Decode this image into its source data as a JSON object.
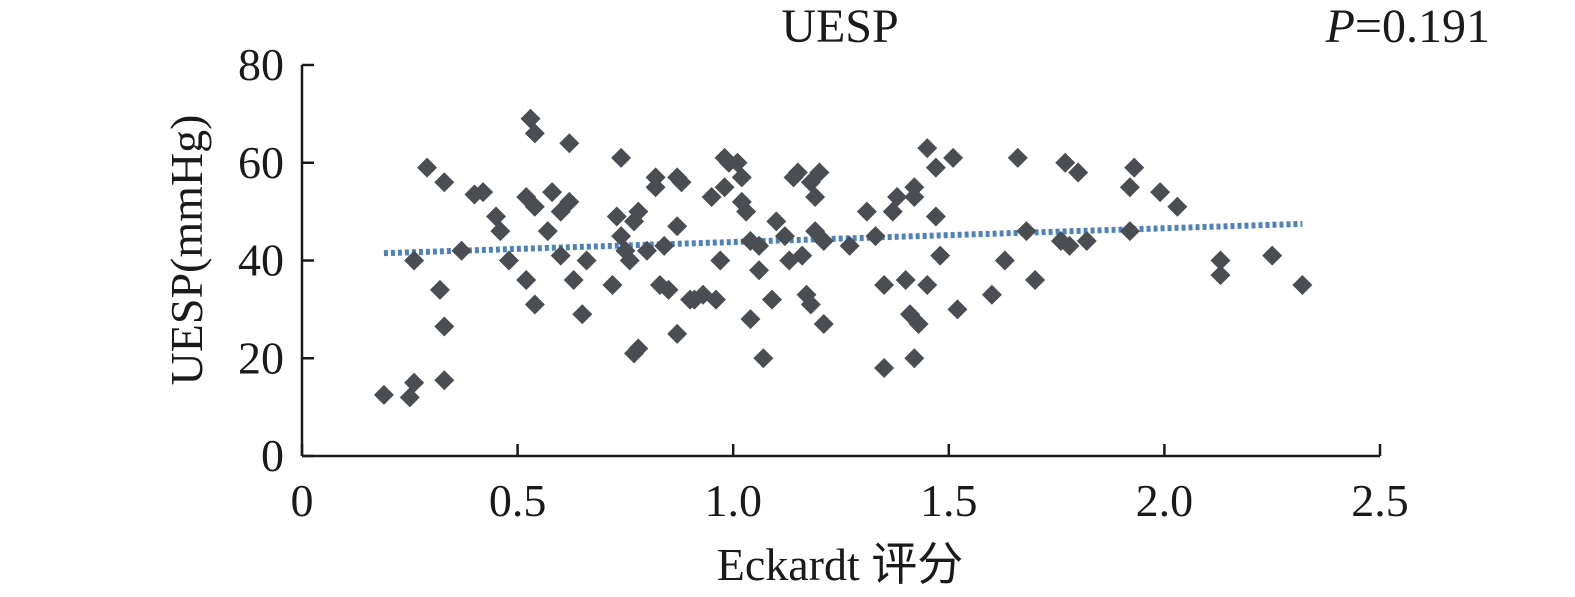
{
  "chart_data": {
    "type": "scatter",
    "title": "UESP",
    "p_value": {
      "symbol": "P",
      "text": "=0.191"
    },
    "xlabel": "Eckardt 评分",
    "ylabel": "UESP(mmHg)",
    "xlim": [
      0,
      2.5
    ],
    "ylim": [
      0,
      80
    ],
    "xticks": [
      0,
      0.5,
      1.0,
      1.5,
      2.0,
      2.5
    ],
    "xtick_labels": [
      "0",
      "0.5",
      "1.0",
      "1.5",
      "2.0",
      "2.5"
    ],
    "yticks": [
      0,
      20,
      40,
      60,
      80
    ],
    "ytick_labels": [
      "0",
      "20",
      "40",
      "60",
      "80"
    ],
    "grid": false,
    "colors": {
      "points": "#4a4d52",
      "trend": "#4f81bd",
      "axis": "#1a1a1a"
    },
    "points": [
      [
        0.19,
        12.5
      ],
      [
        0.25,
        12
      ],
      [
        0.26,
        15
      ],
      [
        0.26,
        40
      ],
      [
        0.29,
        59
      ],
      [
        0.32,
        34
      ],
      [
        0.33,
        56
      ],
      [
        0.33,
        26.5
      ],
      [
        0.33,
        15.5
      ],
      [
        0.37,
        42
      ],
      [
        0.4,
        53.5
      ],
      [
        0.42,
        54
      ],
      [
        0.45,
        49
      ],
      [
        0.46,
        46
      ],
      [
        0.48,
        40
      ],
      [
        0.52,
        53
      ],
      [
        0.52,
        36
      ],
      [
        0.53,
        69
      ],
      [
        0.54,
        66
      ],
      [
        0.54,
        51
      ],
      [
        0.54,
        31
      ],
      [
        0.57,
        46
      ],
      [
        0.58,
        54
      ],
      [
        0.6,
        41
      ],
      [
        0.6,
        50
      ],
      [
        0.62,
        52
      ],
      [
        0.62,
        64
      ],
      [
        0.63,
        36
      ],
      [
        0.65,
        29
      ],
      [
        0.66,
        40
      ],
      [
        0.72,
        35
      ],
      [
        0.73,
        49
      ],
      [
        0.74,
        61
      ],
      [
        0.74,
        45
      ],
      [
        0.75,
        42
      ],
      [
        0.76,
        40
      ],
      [
        0.77,
        48
      ],
      [
        0.78,
        50
      ],
      [
        0.77,
        21
      ],
      [
        0.78,
        22
      ],
      [
        0.8,
        42
      ],
      [
        0.82,
        55
      ],
      [
        0.82,
        57
      ],
      [
        0.83,
        35
      ],
      [
        0.84,
        43
      ],
      [
        0.85,
        34
      ],
      [
        0.87,
        57
      ],
      [
        0.88,
        56
      ],
      [
        0.87,
        47
      ],
      [
        0.87,
        25
      ],
      [
        0.9,
        32
      ],
      [
        0.91,
        32
      ],
      [
        0.93,
        33
      ],
      [
        0.95,
        53
      ],
      [
        0.96,
        32
      ],
      [
        0.97,
        40
      ],
      [
        0.98,
        61
      ],
      [
        0.98,
        55
      ],
      [
        0.99,
        60
      ],
      [
        1.01,
        60
      ],
      [
        1.02,
        57
      ],
      [
        1.02,
        52
      ],
      [
        1.03,
        50
      ],
      [
        1.04,
        44
      ],
      [
        1.04,
        28
      ],
      [
        1.06,
        38
      ],
      [
        1.06,
        43
      ],
      [
        1.07,
        20
      ],
      [
        1.09,
        32
      ],
      [
        1.1,
        48
      ],
      [
        1.12,
        45
      ],
      [
        1.13,
        40
      ],
      [
        1.14,
        57
      ],
      [
        1.15,
        58
      ],
      [
        1.16,
        41
      ],
      [
        1.17,
        33
      ],
      [
        1.18,
        31
      ],
      [
        1.18,
        56
      ],
      [
        1.19,
        53
      ],
      [
        1.19,
        46
      ],
      [
        1.2,
        58
      ],
      [
        1.21,
        27
      ],
      [
        1.21,
        44
      ],
      [
        1.27,
        43
      ],
      [
        1.31,
        50
      ],
      [
        1.33,
        45
      ],
      [
        1.35,
        35
      ],
      [
        1.35,
        18
      ],
      [
        1.37,
        50
      ],
      [
        1.38,
        53
      ],
      [
        1.4,
        36
      ],
      [
        1.42,
        53
      ],
      [
        1.42,
        55
      ],
      [
        1.41,
        29
      ],
      [
        1.43,
        27
      ],
      [
        1.42,
        20
      ],
      [
        1.45,
        35
      ],
      [
        1.45,
        63
      ],
      [
        1.47,
        59
      ],
      [
        1.47,
        49
      ],
      [
        1.48,
        41
      ],
      [
        1.51,
        61
      ],
      [
        1.52,
        30
      ],
      [
        1.6,
        33
      ],
      [
        1.63,
        40
      ],
      [
        1.66,
        61
      ],
      [
        1.68,
        46
      ],
      [
        1.7,
        36
      ],
      [
        1.76,
        44
      ],
      [
        1.77,
        60
      ],
      [
        1.78,
        43
      ],
      [
        1.8,
        58
      ],
      [
        1.82,
        44
      ],
      [
        1.92,
        55
      ],
      [
        1.92,
        46
      ],
      [
        1.93,
        59
      ],
      [
        1.99,
        54
      ],
      [
        2.03,
        51
      ],
      [
        2.13,
        37
      ],
      [
        2.13,
        40
      ],
      [
        2.25,
        41
      ],
      [
        2.32,
        35
      ]
    ],
    "trendline": {
      "x": [
        0.19,
        2.32
      ],
      "y": [
        41.5,
        47.5
      ]
    }
  }
}
